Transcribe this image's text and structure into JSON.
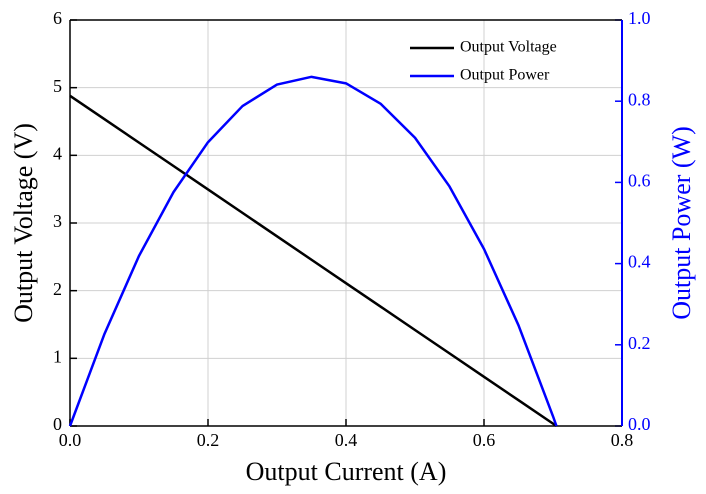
{
  "chart_data": {
    "type": "line",
    "xlabel": "Output Current (A)",
    "ylabel": "Output Voltage (V)",
    "y2label": "Output Power (W)",
    "x": [
      0,
      0.05,
      0.1,
      0.15,
      0.2,
      0.25,
      0.3,
      0.35,
      0.4,
      0.45,
      0.5,
      0.55,
      0.6,
      0.65,
      0.7,
      0.705
    ],
    "series": [
      {
        "name": "Output Voltage",
        "color": "#000000",
        "axis": "y",
        "values": [
          4.88,
          4.534,
          4.188,
          3.842,
          3.496,
          3.15,
          2.803,
          2.457,
          2.111,
          1.765,
          1.419,
          1.073,
          0.727,
          0.381,
          0.035,
          0
        ]
      },
      {
        "name": "Output Power",
        "color": "#0000ff",
        "axis": "y2",
        "values": [
          0,
          0.227,
          0.419,
          0.576,
          0.699,
          0.788,
          0.841,
          0.86,
          0.844,
          0.794,
          0.71,
          0.59,
          0.436,
          0.248,
          0.024,
          0
        ]
      }
    ],
    "xlim": [
      0,
      0.8
    ],
    "xticks": [
      {
        "value": 0,
        "label": "0.0"
      },
      0.2,
      0.4,
      0.6,
      0.8
    ],
    "ylim": [
      0,
      6
    ],
    "yticks": [
      0,
      1,
      2,
      3,
      4,
      5,
      6
    ],
    "y2lim": [
      0,
      1
    ],
    "y2ticks": [
      {
        "value": 0,
        "label": "0.0"
      },
      0.2,
      0.4,
      0.6,
      0.8,
      {
        "value": 1,
        "label": "1.0"
      }
    ],
    "y2color": "#0000ff",
    "grid": true,
    "legend": "upper right"
  }
}
